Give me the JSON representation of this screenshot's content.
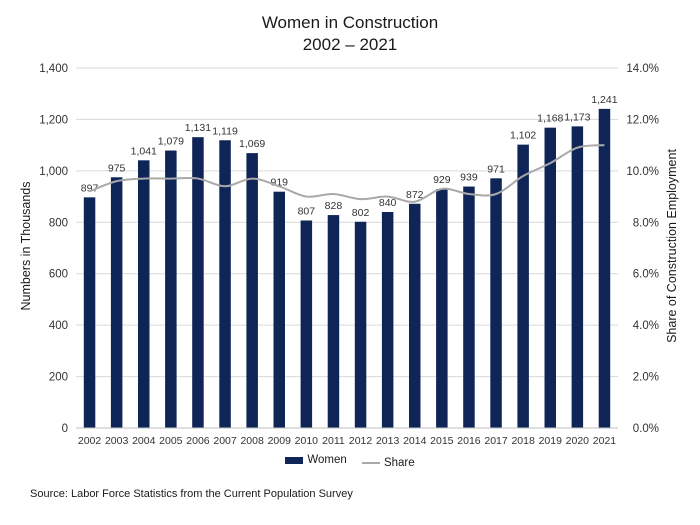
{
  "chart_data": {
    "type": "bar",
    "title": "Women in Construction",
    "subtitle": "2002 – 2021",
    "categories": [
      "2002",
      "2003",
      "2004",
      "2005",
      "2006",
      "2007",
      "2008",
      "2009",
      "2010",
      "2011",
      "2012",
      "2013",
      "2014",
      "2015",
      "2016",
      "2017",
      "2018",
      "2019",
      "2020",
      "2021"
    ],
    "series": [
      {
        "name": "Women",
        "type": "bar",
        "axis": "left",
        "color": "#0f2557",
        "values": [
          897,
          975,
          1041,
          1079,
          1131,
          1119,
          1069,
          919,
          807,
          828,
          802,
          840,
          872,
          929,
          939,
          971,
          1102,
          1168,
          1173,
          1241
        ],
        "labels": [
          "897",
          "975",
          "1,041",
          "1,079",
          "1,131",
          "1,119",
          "1,069",
          "919",
          "807",
          "828",
          "802",
          "840",
          "872",
          "929",
          "939",
          "971",
          "1,102",
          "1,168",
          "1,173",
          "1,241"
        ]
      },
      {
        "name": "Share",
        "type": "line",
        "axis": "right",
        "color": "#a9a9a9",
        "values": [
          9.2,
          9.6,
          9.7,
          9.7,
          9.7,
          9.4,
          9.7,
          9.4,
          9.0,
          9.1,
          8.9,
          9.0,
          8.8,
          9.3,
          9.1,
          9.1,
          9.8,
          10.3,
          10.9,
          11.0
        ]
      }
    ],
    "ylabel": "Numbers in Thousands",
    "y2label": "Share of Construction Employment",
    "ylim": [
      0,
      1400
    ],
    "y2lim": [
      0,
      14
    ],
    "yticks": [
      "0",
      "200",
      "400",
      "600",
      "800",
      "1,000",
      "1,200",
      "1,400"
    ],
    "y2ticks": [
      "0.0%",
      "2.0%",
      "4.0%",
      "6.0%",
      "8.0%",
      "10.0%",
      "12.0%",
      "14.0%"
    ],
    "legend": [
      "Women",
      "Share"
    ],
    "legend_position": "bottom",
    "grid": true
  },
  "source": "Source: Labor Force Statistics from the Current Population Survey"
}
